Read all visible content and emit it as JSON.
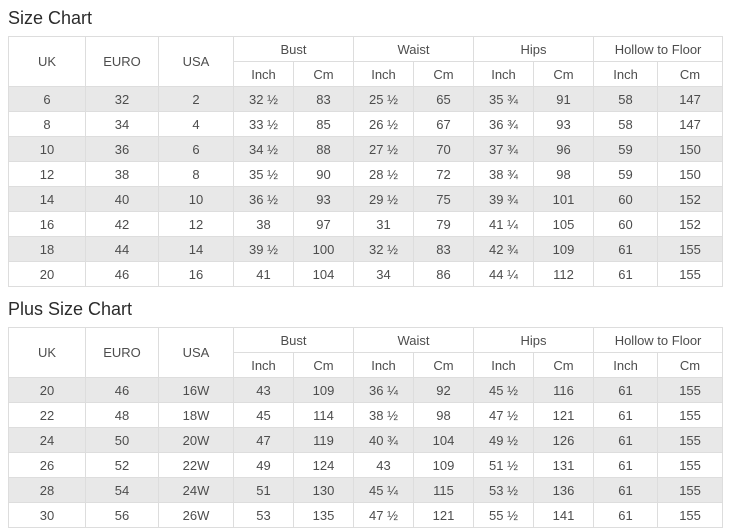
{
  "page": {
    "background": "#ffffff",
    "stripe_color": "#e8e8e8",
    "border_color": "#dddddd",
    "text_color": "#4d4d4d",
    "title_color": "#2b2b2b"
  },
  "tables": [
    {
      "title": "Size Chart",
      "columns": [
        "UK",
        "EURO",
        "USA"
      ],
      "groups": [
        "Bust",
        "Waist",
        "Hips",
        "Hollow to Floor"
      ],
      "units": [
        "Inch",
        "Cm"
      ],
      "rows": [
        [
          "6",
          "32",
          "2",
          "32 ½",
          "83",
          "25 ½",
          "65",
          "35 ¾",
          "91",
          "58",
          "147"
        ],
        [
          "8",
          "34",
          "4",
          "33 ½",
          "85",
          "26 ½",
          "67",
          "36 ¾",
          "93",
          "58",
          "147"
        ],
        [
          "10",
          "36",
          "6",
          "34 ½",
          "88",
          "27 ½",
          "70",
          "37 ¾",
          "96",
          "59",
          "150"
        ],
        [
          "12",
          "38",
          "8",
          "35 ½",
          "90",
          "28 ½",
          "72",
          "38 ¾",
          "98",
          "59",
          "150"
        ],
        [
          "14",
          "40",
          "10",
          "36 ½",
          "93",
          "29 ½",
          "75",
          "39 ¾",
          "101",
          "60",
          "152"
        ],
        [
          "16",
          "42",
          "12",
          "38",
          "97",
          "31",
          "79",
          "41 ¼",
          "105",
          "60",
          "152"
        ],
        [
          "18",
          "44",
          "14",
          "39 ½",
          "100",
          "32 ½",
          "83",
          "42 ¾",
          "109",
          "61",
          "155"
        ],
        [
          "20",
          "46",
          "16",
          "41",
          "104",
          "34",
          "86",
          "44 ¼",
          "112",
          "61",
          "155"
        ]
      ]
    },
    {
      "title": "Plus Size Chart",
      "columns": [
        "UK",
        "EURO",
        "USA"
      ],
      "groups": [
        "Bust",
        "Waist",
        "Hips",
        "Hollow to Floor"
      ],
      "units": [
        "Inch",
        "Cm"
      ],
      "rows": [
        [
          "20",
          "46",
          "16W",
          "43",
          "109",
          "36 ¼",
          "92",
          "45 ½",
          "116",
          "61",
          "155"
        ],
        [
          "22",
          "48",
          "18W",
          "45",
          "114",
          "38 ½",
          "98",
          "47 ½",
          "121",
          "61",
          "155"
        ],
        [
          "24",
          "50",
          "20W",
          "47",
          "119",
          "40 ¾",
          "104",
          "49 ½",
          "126",
          "61",
          "155"
        ],
        [
          "26",
          "52",
          "22W",
          "49",
          "124",
          "43",
          "109",
          "51 ½",
          "131",
          "61",
          "155"
        ],
        [
          "28",
          "54",
          "24W",
          "51",
          "130",
          "45 ¼",
          "115",
          "53 ½",
          "136",
          "61",
          "155"
        ],
        [
          "30",
          "56",
          "26W",
          "53",
          "135",
          "47 ½",
          "121",
          "55 ½",
          "141",
          "61",
          "155"
        ]
      ]
    }
  ]
}
